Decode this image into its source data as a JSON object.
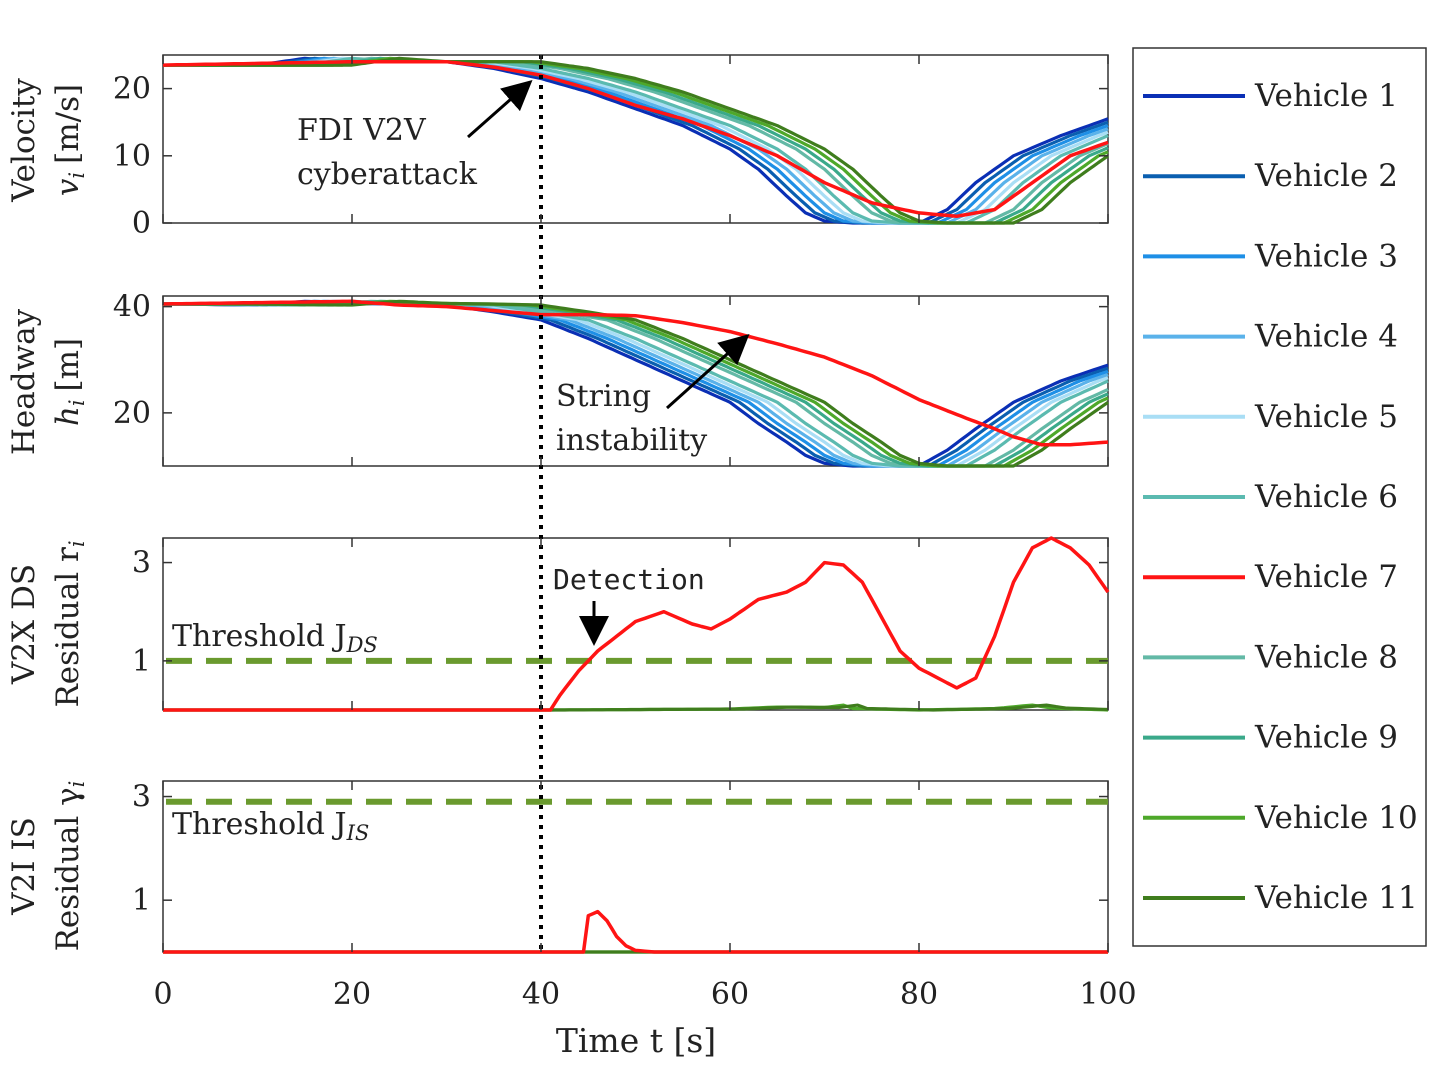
{
  "chart_data": {
    "type": "line",
    "layout": "4 stacked subplots sharing a time axis, legend on the right",
    "x_axis": {
      "label": "Time t [s]",
      "range": [
        0,
        100
      ],
      "ticks": [
        0,
        20,
        40,
        60,
        80,
        100
      ]
    },
    "attack_time": 40,
    "legend": {
      "placement": "right",
      "entries": [
        {
          "name": "Vehicle 1",
          "color": "#0a2fb5"
        },
        {
          "name": "Vehicle 2",
          "color": "#0a5fb0"
        },
        {
          "name": "Vehicle 3",
          "color": "#1e8fe6"
        },
        {
          "name": "Vehicle 4",
          "color": "#5ab2ea"
        },
        {
          "name": "Vehicle 5",
          "color": "#a9def5"
        },
        {
          "name": "Vehicle 6",
          "color": "#5bbab0"
        },
        {
          "name": "Vehicle 7",
          "color": "#ff1414"
        },
        {
          "name": "Vehicle 8",
          "color": "#63b9a6"
        },
        {
          "name": "Vehicle 9",
          "color": "#3aa98a"
        },
        {
          "name": "Vehicle 10",
          "color": "#4ea82a"
        },
        {
          "name": "Vehicle 11",
          "color": "#3f7d1d"
        }
      ]
    },
    "panels": [
      {
        "id": "velocity",
        "ylabel_line1": "Velocity",
        "ylabel_line2": "v",
        "ylabel_sub": "i",
        "ylabel_unit": "[m/s]",
        "ylim": [
          0,
          25
        ],
        "yticks": [
          0,
          10,
          20
        ],
        "annotation_line1": "FDI V2V",
        "annotation_line2": "cyberattack",
        "base_curve": [
          [
            0,
            23.5
          ],
          [
            10,
            23.5
          ],
          [
            15,
            24.5
          ],
          [
            20,
            24
          ],
          [
            25,
            24
          ],
          [
            30,
            24
          ],
          [
            35,
            23
          ],
          [
            40,
            21.5
          ],
          [
            45,
            19.5
          ],
          [
            50,
            17
          ],
          [
            55,
            14.5
          ],
          [
            60,
            11
          ],
          [
            63,
            8
          ],
          [
            66,
            4
          ],
          [
            68,
            1.5
          ],
          [
            70,
            0.3
          ],
          [
            73,
            0
          ],
          [
            80,
            0
          ],
          [
            83,
            2
          ],
          [
            86,
            6
          ],
          [
            90,
            10
          ],
          [
            95,
            13
          ],
          [
            100,
            15.5
          ]
        ],
        "attacked_curve": [
          [
            0,
            23.5
          ],
          [
            20,
            24
          ],
          [
            30,
            24
          ],
          [
            35,
            23.2
          ],
          [
            40,
            22
          ],
          [
            45,
            20
          ],
          [
            50,
            17.5
          ],
          [
            55,
            15.5
          ],
          [
            60,
            13
          ],
          [
            65,
            10
          ],
          [
            70,
            6
          ],
          [
            75,
            3
          ],
          [
            80,
            1.5
          ],
          [
            84,
            1
          ],
          [
            88,
            2
          ],
          [
            90,
            4
          ],
          [
            93,
            7
          ],
          [
            96,
            10
          ],
          [
            100,
            12
          ]
        ]
      },
      {
        "id": "headway",
        "ylabel_line1": "Headway",
        "ylabel_line2": "h",
        "ylabel_sub": "i",
        "ylabel_unit": "[m]",
        "ylim": [
          10,
          42
        ],
        "yticks": [
          20,
          40
        ],
        "annotation_line1": "String",
        "annotation_line2": "instability",
        "base_curve": [
          [
            0,
            40.5
          ],
          [
            10,
            40.3
          ],
          [
            15,
            41
          ],
          [
            20,
            40.6
          ],
          [
            25,
            40.5
          ],
          [
            30,
            40.3
          ],
          [
            35,
            39
          ],
          [
            40,
            37.5
          ],
          [
            45,
            34
          ],
          [
            50,
            30
          ],
          [
            55,
            26
          ],
          [
            60,
            22
          ],
          [
            63,
            18
          ],
          [
            66,
            14.5
          ],
          [
            68,
            12
          ],
          [
            70,
            10.5
          ],
          [
            73,
            10
          ],
          [
            80,
            10
          ],
          [
            83,
            13
          ],
          [
            86,
            17
          ],
          [
            90,
            22
          ],
          [
            95,
            26
          ],
          [
            100,
            29
          ]
        ],
        "attacked_curve": [
          [
            0,
            40.5
          ],
          [
            20,
            41
          ],
          [
            25,
            40.3
          ],
          [
            30,
            40
          ],
          [
            40,
            38.5
          ],
          [
            45,
            38.5
          ],
          [
            50,
            38.3
          ],
          [
            55,
            37
          ],
          [
            60,
            35.3
          ],
          [
            65,
            33
          ],
          [
            70,
            30.5
          ],
          [
            75,
            27
          ],
          [
            80,
            22.5
          ],
          [
            85,
            19
          ],
          [
            88,
            17
          ],
          [
            90,
            15.5
          ],
          [
            93,
            14
          ],
          [
            96,
            14
          ],
          [
            100,
            14.5
          ]
        ]
      },
      {
        "id": "v2x",
        "ylabel_line1": "V2X DS",
        "ylabel_line2": "Residual r",
        "ylabel_sub": "i",
        "ylabel_unit": "",
        "ylim": [
          0,
          3.5
        ],
        "yticks": [
          1,
          3
        ],
        "threshold": 1,
        "threshold_label": "Threshold J",
        "threshold_sub": "DS",
        "detection_label": "Detection",
        "detection_time": 45,
        "attacked_curve": [
          [
            0,
            0
          ],
          [
            40,
            0
          ],
          [
            41,
            0
          ],
          [
            42,
            0.3
          ],
          [
            44,
            0.8
          ],
          [
            46,
            1.2
          ],
          [
            48,
            1.5
          ],
          [
            50,
            1.8
          ],
          [
            53,
            2
          ],
          [
            56,
            1.75
          ],
          [
            58,
            1.65
          ],
          [
            60,
            1.85
          ],
          [
            63,
            2.25
          ],
          [
            66,
            2.4
          ],
          [
            68,
            2.6
          ],
          [
            70,
            3
          ],
          [
            72,
            2.95
          ],
          [
            74,
            2.6
          ],
          [
            76,
            1.9
          ],
          [
            78,
            1.2
          ],
          [
            80,
            0.85
          ],
          [
            82,
            0.65
          ],
          [
            84,
            0.45
          ],
          [
            86,
            0.65
          ],
          [
            88,
            1.5
          ],
          [
            90,
            2.6
          ],
          [
            92,
            3.3
          ],
          [
            94,
            3.5
          ],
          [
            96,
            3.3
          ],
          [
            98,
            2.95
          ],
          [
            100,
            2.4
          ]
        ],
        "others_curve": [
          [
            0,
            0
          ],
          [
            40,
            0
          ],
          [
            60,
            0.02
          ],
          [
            65,
            0.06
          ],
          [
            70,
            0.05
          ],
          [
            72,
            0.1
          ],
          [
            73,
            0.03
          ],
          [
            80,
            0
          ],
          [
            88,
            0.03
          ],
          [
            92,
            0.1
          ],
          [
            94,
            0.04
          ],
          [
            100,
            0
          ]
        ]
      },
      {
        "id": "v2i",
        "ylabel_line1": "V2I IS",
        "ylabel_line2": "Residual γ",
        "ylabel_sub": "i",
        "ylabel_unit": "",
        "ylim": [
          0,
          3.3
        ],
        "yticks": [
          1,
          3
        ],
        "threshold": 2.9,
        "threshold_label": "Threshold J",
        "threshold_sub": "IS",
        "attacked_curve": [
          [
            0,
            0
          ],
          [
            44.8,
            0
          ],
          [
            45,
            0.7
          ],
          [
            46,
            0.78
          ],
          [
            47,
            0.6
          ],
          [
            48,
            0.3
          ],
          [
            49,
            0.12
          ],
          [
            50,
            0.03
          ],
          [
            52,
            0
          ],
          [
            100,
            0
          ]
        ],
        "others_curve": [
          [
            0,
            0
          ],
          [
            100,
            0
          ]
        ]
      }
    ]
  }
}
